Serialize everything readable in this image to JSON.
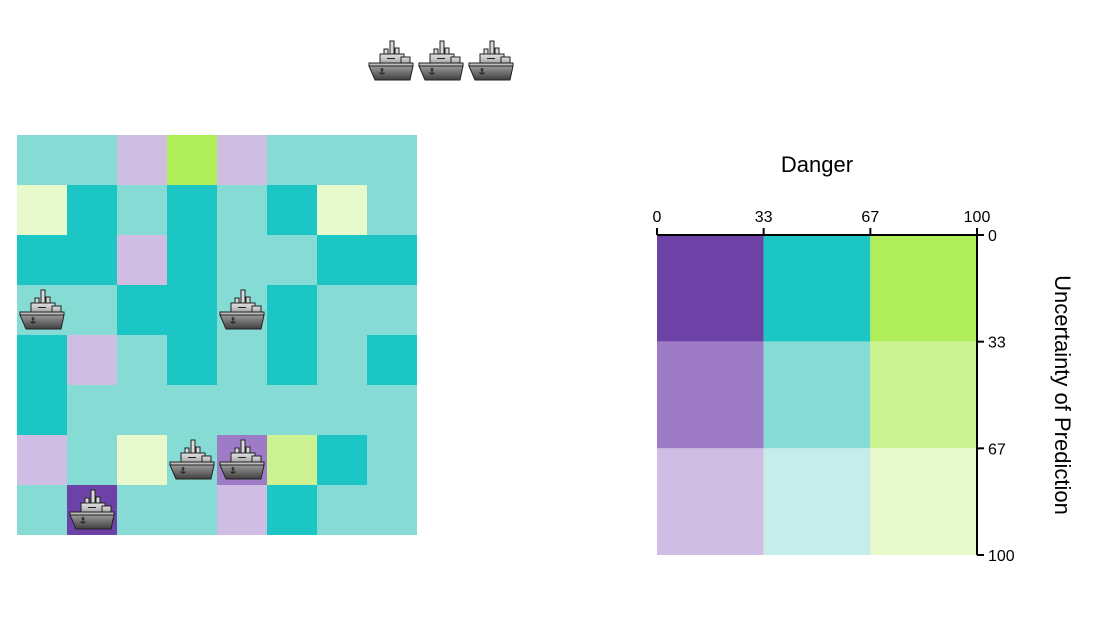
{
  "game": {
    "pool_ships": 3,
    "cell_colors": {
      "teal_light": "#87dbd5",
      "teal": "#1cc6c4",
      "lilac": "#cfbde3",
      "lime": "#b1ef5a",
      "pale_yellow": "#e8f9cc",
      "purple_dark": "#6d42a7",
      "purple_mid": "#9e7bc6",
      "lime_light": "#ccf291",
      "teal_pale": "#c6ede9"
    },
    "board": [
      [
        "teal_light",
        "teal_light",
        "lilac",
        "lime",
        "lilac",
        "teal_light",
        "teal_light",
        "teal_light"
      ],
      [
        "pale_yellow",
        "teal",
        "teal_light",
        "teal",
        "teal_light",
        "teal",
        "pale_yellow",
        "teal_light"
      ],
      [
        "teal",
        "teal",
        "lilac",
        "teal",
        "teal_light",
        "teal_light",
        "teal",
        "teal"
      ],
      [
        "teal_light",
        "teal_light",
        "teal",
        "teal",
        "teal_light",
        "teal",
        "teal_light",
        "teal_light"
      ],
      [
        "teal",
        "lilac",
        "teal_light",
        "teal",
        "teal_light",
        "teal",
        "teal_light",
        "teal"
      ],
      [
        "teal",
        "teal_light",
        "teal_light",
        "teal_light",
        "teal_light",
        "teal_light",
        "teal_light",
        "teal_light"
      ],
      [
        "lilac",
        "teal_light",
        "pale_yellow",
        "teal_light",
        "purple_mid",
        "lime_light",
        "teal",
        "teal_light"
      ],
      [
        "teal_light",
        "purple_dark",
        "teal_light",
        "teal_light",
        "lilac",
        "teal",
        "teal_light",
        "teal_light"
      ]
    ],
    "placed_ships": [
      {
        "row": 3,
        "col": 0
      },
      {
        "row": 3,
        "col": 4
      },
      {
        "row": 6,
        "col": 3
      },
      {
        "row": 6,
        "col": 4
      },
      {
        "row": 7,
        "col": 1
      }
    ]
  },
  "legend": {
    "title": "Danger",
    "y_title": "Uncertainty of Prediction",
    "x_ticks": [
      "0",
      "33",
      "67",
      "100"
    ],
    "y_ticks": [
      "0",
      "33",
      "67",
      "100"
    ],
    "grid": [
      [
        "#6d42a7",
        "#1cc6c4",
        "#b1ef5a"
      ],
      [
        "#9e7bc6",
        "#87dbd5",
        "#ccf291"
      ],
      [
        "#cfbde3",
        "#c6ede9",
        "#e8f9cc"
      ]
    ]
  },
  "icons": {
    "ship": "ship-icon"
  }
}
